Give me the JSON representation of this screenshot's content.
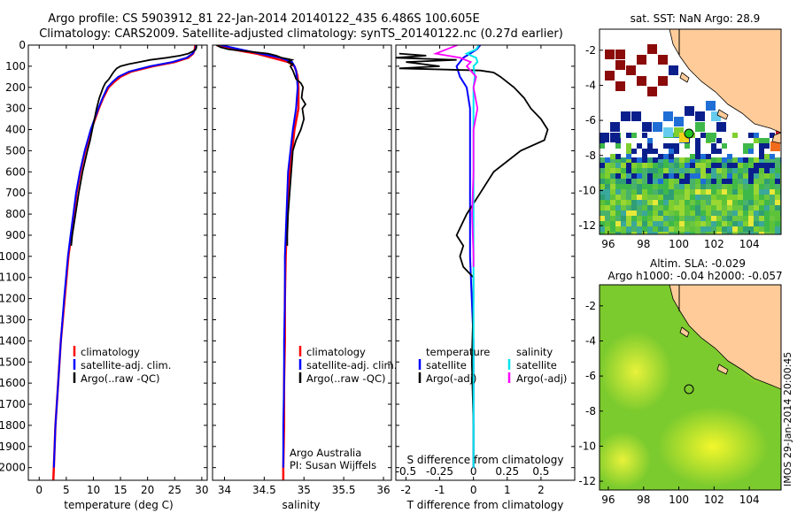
{
  "header": {
    "line1": "Argo profile: CS 5903912_81 22-Jan-2014 20140122_435 6.486S 100.605E",
    "line2": "Climatology: CARS2009. Satellite-adjusted climatology: synTS_20140122.nc (0.27d earlier)"
  },
  "colors": {
    "climatology": "#ff0000",
    "satellite": "#0000ff",
    "argo": "#000000",
    "salinity_satellite": "#00e5ee",
    "salinity_argo": "#ff00ff",
    "land": "#ffcc99"
  },
  "chart_data": [
    {
      "type": "line",
      "name": "temperature",
      "xlabel": "temperature (deg C)",
      "ylabel": "",
      "xlim": [
        -2,
        31
      ],
      "ylim": [
        2060,
        0
      ],
      "xticks": [
        0,
        5,
        10,
        15,
        20,
        25,
        30
      ],
      "yticks": [
        0,
        100,
        200,
        300,
        400,
        500,
        600,
        700,
        800,
        900,
        1000,
        1100,
        1200,
        1300,
        1400,
        1500,
        1600,
        1700,
        1800,
        1900,
        2000
      ],
      "legend": [
        "climatology",
        "satellite-adj. clim.",
        "Argo(..raw -QC)"
      ],
      "legend_position": "lower-center",
      "series": [
        {
          "name": "climatology",
          "depth": [
            0,
            20,
            40,
            60,
            80,
            100,
            125,
            150,
            175,
            200,
            250,
            300,
            400,
            500,
            600,
            700,
            800,
            900,
            1000,
            1200,
            1400,
            1600,
            1800,
            2000,
            2060
          ],
          "values": [
            28.8,
            28.7,
            28.4,
            27.5,
            25.0,
            21.0,
            17.0,
            15.0,
            13.8,
            12.8,
            11.8,
            11.0,
            9.6,
            8.5,
            7.6,
            6.9,
            6.4,
            5.9,
            5.4,
            4.7,
            4.0,
            3.5,
            3.0,
            2.7,
            2.6
          ]
        },
        {
          "name": "satellite-adj. clim.",
          "depth": [
            0,
            20,
            40,
            60,
            80,
            100,
            125,
            150,
            175,
            200,
            250,
            300,
            400,
            500,
            600,
            700,
            800,
            900,
            1000,
            1200,
            1400,
            1600,
            1800,
            2000
          ],
          "values": [
            29.0,
            28.8,
            28.3,
            27.2,
            24.6,
            20.5,
            16.6,
            14.6,
            13.5,
            12.6,
            11.7,
            10.9,
            9.5,
            8.4,
            7.5,
            6.8,
            6.3,
            5.8,
            5.3,
            4.6,
            4.0,
            3.5,
            3.0,
            2.7
          ]
        },
        {
          "name": "Argo(..raw -QC)",
          "depth": [
            0,
            10,
            20,
            30,
            40,
            50,
            60,
            70,
            80,
            90,
            100,
            110,
            125,
            140,
            160,
            180,
            200,
            250,
            300,
            350,
            400,
            450,
            500,
            600,
            700,
            800,
            900,
            950
          ],
          "values": [
            29.0,
            29.0,
            28.9,
            28.3,
            27.5,
            26.0,
            23.5,
            20.5,
            18.5,
            16.5,
            15.0,
            14.3,
            13.8,
            13.4,
            12.9,
            12.2,
            11.8,
            11.1,
            10.6,
            10.2,
            9.8,
            9.4,
            8.9,
            8.0,
            7.3,
            6.7,
            6.1,
            5.9
          ]
        }
      ]
    },
    {
      "type": "line",
      "name": "salinity",
      "xlabel": "salinity",
      "xlim": [
        33.85,
        36.1
      ],
      "ylim": [
        2060,
        0
      ],
      "xticks": [
        34,
        34.5,
        35,
        35.5,
        36
      ],
      "xticklabels": [
        "34",
        "34.5",
        "35",
        "35.5",
        "36"
      ],
      "legend": [
        "climatology",
        "satellite-adj. clim.",
        "Argo(..raw -QC)"
      ],
      "legend_position": "lower-center",
      "annotation": [
        "Argo Australia",
        "PI: Susan Wijffels"
      ],
      "series": [
        {
          "name": "climatology",
          "depth": [
            0,
            20,
            40,
            60,
            80,
            100,
            120,
            150,
            200,
            300,
            400,
            500,
            600,
            700,
            800,
            900,
            1000,
            1200,
            1400,
            1600,
            1800,
            2000,
            2060
          ],
          "values": [
            33.9,
            34.1,
            34.4,
            34.6,
            34.8,
            34.88,
            34.9,
            34.92,
            34.93,
            34.93,
            34.88,
            34.85,
            34.82,
            34.8,
            34.79,
            34.78,
            34.77,
            34.76,
            34.76,
            34.75,
            34.75,
            34.74,
            34.74
          ]
        },
        {
          "name": "satellite-adj. clim.",
          "depth": [
            0,
            20,
            40,
            60,
            80,
            100,
            120,
            150,
            200,
            300,
            400,
            500,
            600,
            700,
            800,
            900,
            1000,
            1200,
            1400,
            1600,
            1800,
            2000
          ],
          "values": [
            33.95,
            34.2,
            34.45,
            34.7,
            34.85,
            34.88,
            34.9,
            34.91,
            34.92,
            34.9,
            34.86,
            34.83,
            34.8,
            34.79,
            34.78,
            34.77,
            34.76,
            34.76,
            34.75,
            34.75,
            34.74,
            34.74
          ]
        },
        {
          "name": "Argo(..raw -QC)",
          "depth": [
            0,
            10,
            20,
            30,
            40,
            50,
            60,
            70,
            80,
            90,
            100,
            120,
            140,
            160,
            180,
            200,
            220,
            250,
            280,
            300,
            350,
            400,
            450,
            500,
            600,
            700,
            800,
            900,
            950
          ],
          "values": [
            33.9,
            33.95,
            34.05,
            34.3,
            34.55,
            34.65,
            34.72,
            34.85,
            34.8,
            34.86,
            34.83,
            34.86,
            34.88,
            34.9,
            34.96,
            34.99,
            34.98,
            34.97,
            35.02,
            34.98,
            35.0,
            34.96,
            34.9,
            34.86,
            34.84,
            34.82,
            34.8,
            34.79,
            34.79
          ]
        }
      ]
    },
    {
      "type": "line",
      "name": "difference from climatology",
      "xlabel": "T difference from climatology",
      "xlabel_top": "S difference from climatology",
      "xlim": [
        -2.3,
        3.0
      ],
      "ylim": [
        2060,
        0
      ],
      "xticks": [
        -2,
        -1,
        0,
        1,
        2
      ],
      "s_xticks": [
        -0.5,
        -0.25,
        0,
        0.25,
        0.5
      ],
      "s_xticklabels": [
        "-0.5",
        "-0.25",
        "0",
        "0.25",
        "0.5"
      ],
      "legend_temperature": [
        "temperature",
        "satellite",
        "Argo(-adj)"
      ],
      "legend_salinity": [
        "salinity",
        "satellite",
        "Argo(-adj)"
      ],
      "series": [
        {
          "name": "T satellite",
          "depth": [
            0,
            20,
            40,
            60,
            80,
            100,
            150,
            200,
            300,
            400,
            600,
            800,
            1000,
            1400,
            2000
          ],
          "values": [
            0.2,
            0.1,
            -0.1,
            -0.3,
            -0.4,
            -0.5,
            -0.4,
            -0.2,
            -0.1,
            -0.1,
            -0.1,
            -0.1,
            -0.1,
            0.0,
            0.0
          ]
        },
        {
          "name": "T Argo",
          "depth": [
            40,
            50,
            60,
            70,
            80,
            90,
            100,
            110,
            120,
            130,
            150,
            175,
            200,
            250,
            300,
            350,
            400,
            450,
            500,
            600,
            700,
            800,
            900,
            950,
            1000,
            1050,
            1100,
            1200,
            1500,
            1800,
            2000
          ],
          "values": [
            -2.2,
            -1.4,
            -2.3,
            -0.5,
            -2.0,
            -1.5,
            -1.0,
            -2.2,
            0.2,
            0.6,
            0.8,
            1.0,
            1.2,
            1.5,
            1.7,
            2.0,
            2.2,
            2.1,
            1.4,
            0.6,
            0.2,
            -0.2,
            -0.5,
            -0.3,
            -0.4,
            -0.3,
            0.0,
            0.0,
            -0.05,
            0.0,
            0.0
          ]
        },
        {
          "name": "S satellite",
          "depth": [
            0,
            20,
            40,
            60,
            80,
            100,
            150,
            200,
            400,
            800,
            1000,
            1200,
            2000
          ],
          "values": [
            0.04,
            0.02,
            -0.05,
            0.02,
            0.03,
            0.0,
            0.01,
            0.0,
            0.0,
            0.0,
            0.0,
            0.0,
            0.0
          ]
        },
        {
          "name": "S Argo",
          "depth": [
            0,
            20,
            40,
            60,
            80,
            100,
            150,
            200,
            300,
            400,
            600,
            800,
            1000,
            1050
          ],
          "values": [
            -0.12,
            -0.2,
            -0.28,
            -0.1,
            -0.02,
            -0.05,
            0.02,
            0.0,
            0.03,
            0.0,
            0.0,
            -0.01,
            0.0,
            0.0
          ]
        }
      ]
    },
    {
      "type": "heatmap",
      "name": "sat SST map",
      "title": "sat. SST: NaN Argo: 28.9",
      "xlim": [
        95.5,
        105.8
      ],
      "ylim": [
        -12.5,
        -0.8
      ],
      "xticks": [
        96,
        98,
        100,
        102,
        104
      ],
      "yticks": [
        -2,
        -4,
        -6,
        -8,
        -10,
        -12
      ],
      "argo_position": {
        "lon": 100.605,
        "lat": -6.486
      }
    },
    {
      "type": "heatmap",
      "name": "altimetry SLA map",
      "title": "Altim. SLA: -0.029",
      "subtitle": "Argo h1000: -0.04 h2000: -0.057",
      "xlim": [
        95.5,
        105.8
      ],
      "ylim": [
        -12.5,
        -0.8
      ],
      "xticks": [
        96,
        98,
        100,
        102,
        104
      ],
      "yticks": [
        -2,
        -4,
        -6,
        -8,
        -10,
        -12
      ],
      "argo_position": {
        "lon": 100.605,
        "lat": -6.486
      }
    }
  ],
  "stamp": "IMOS 29-Jan-2014 20:00:45"
}
